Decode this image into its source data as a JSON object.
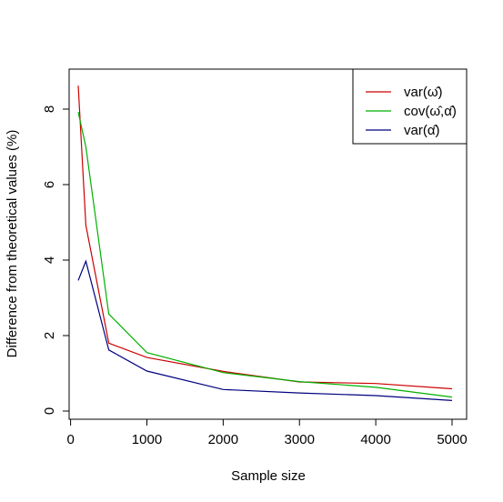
{
  "chart_data": {
    "type": "line",
    "xlabel": "Sample size",
    "ylabel": "Difference from theoretical values (%)",
    "xlim": [
      100,
      5000
    ],
    "ylim": [
      0,
      8.65
    ],
    "x_ticks": [
      0,
      1000,
      2000,
      3000,
      4000,
      5000
    ],
    "y_ticks": [
      0,
      2,
      4,
      6,
      8
    ],
    "x_tick_labels": [
      "0",
      "1000",
      "2000",
      "3000",
      "4000",
      "5000"
    ],
    "y_tick_labels": [
      "0",
      "2",
      "4",
      "6",
      "8"
    ],
    "x": [
      100,
      200,
      500,
      1000,
      2000,
      3000,
      4000,
      5000
    ],
    "legend_position": "top-right",
    "series": [
      {
        "name": "var(ω̂)",
        "color": "#cc0000",
        "values": [
          8.62,
          4.92,
          1.8,
          1.42,
          1.05,
          0.77,
          0.73,
          0.59
        ]
      },
      {
        "name": "cov(ω̂,α̂)",
        "color": "#00b000",
        "values": [
          7.92,
          7.0,
          2.57,
          1.55,
          1.02,
          0.78,
          0.63,
          0.37
        ]
      },
      {
        "name": "var(α̂)",
        "color": "#000080",
        "values": [
          3.46,
          3.97,
          1.62,
          1.06,
          0.57,
          0.48,
          0.41,
          0.28
        ]
      }
    ]
  }
}
